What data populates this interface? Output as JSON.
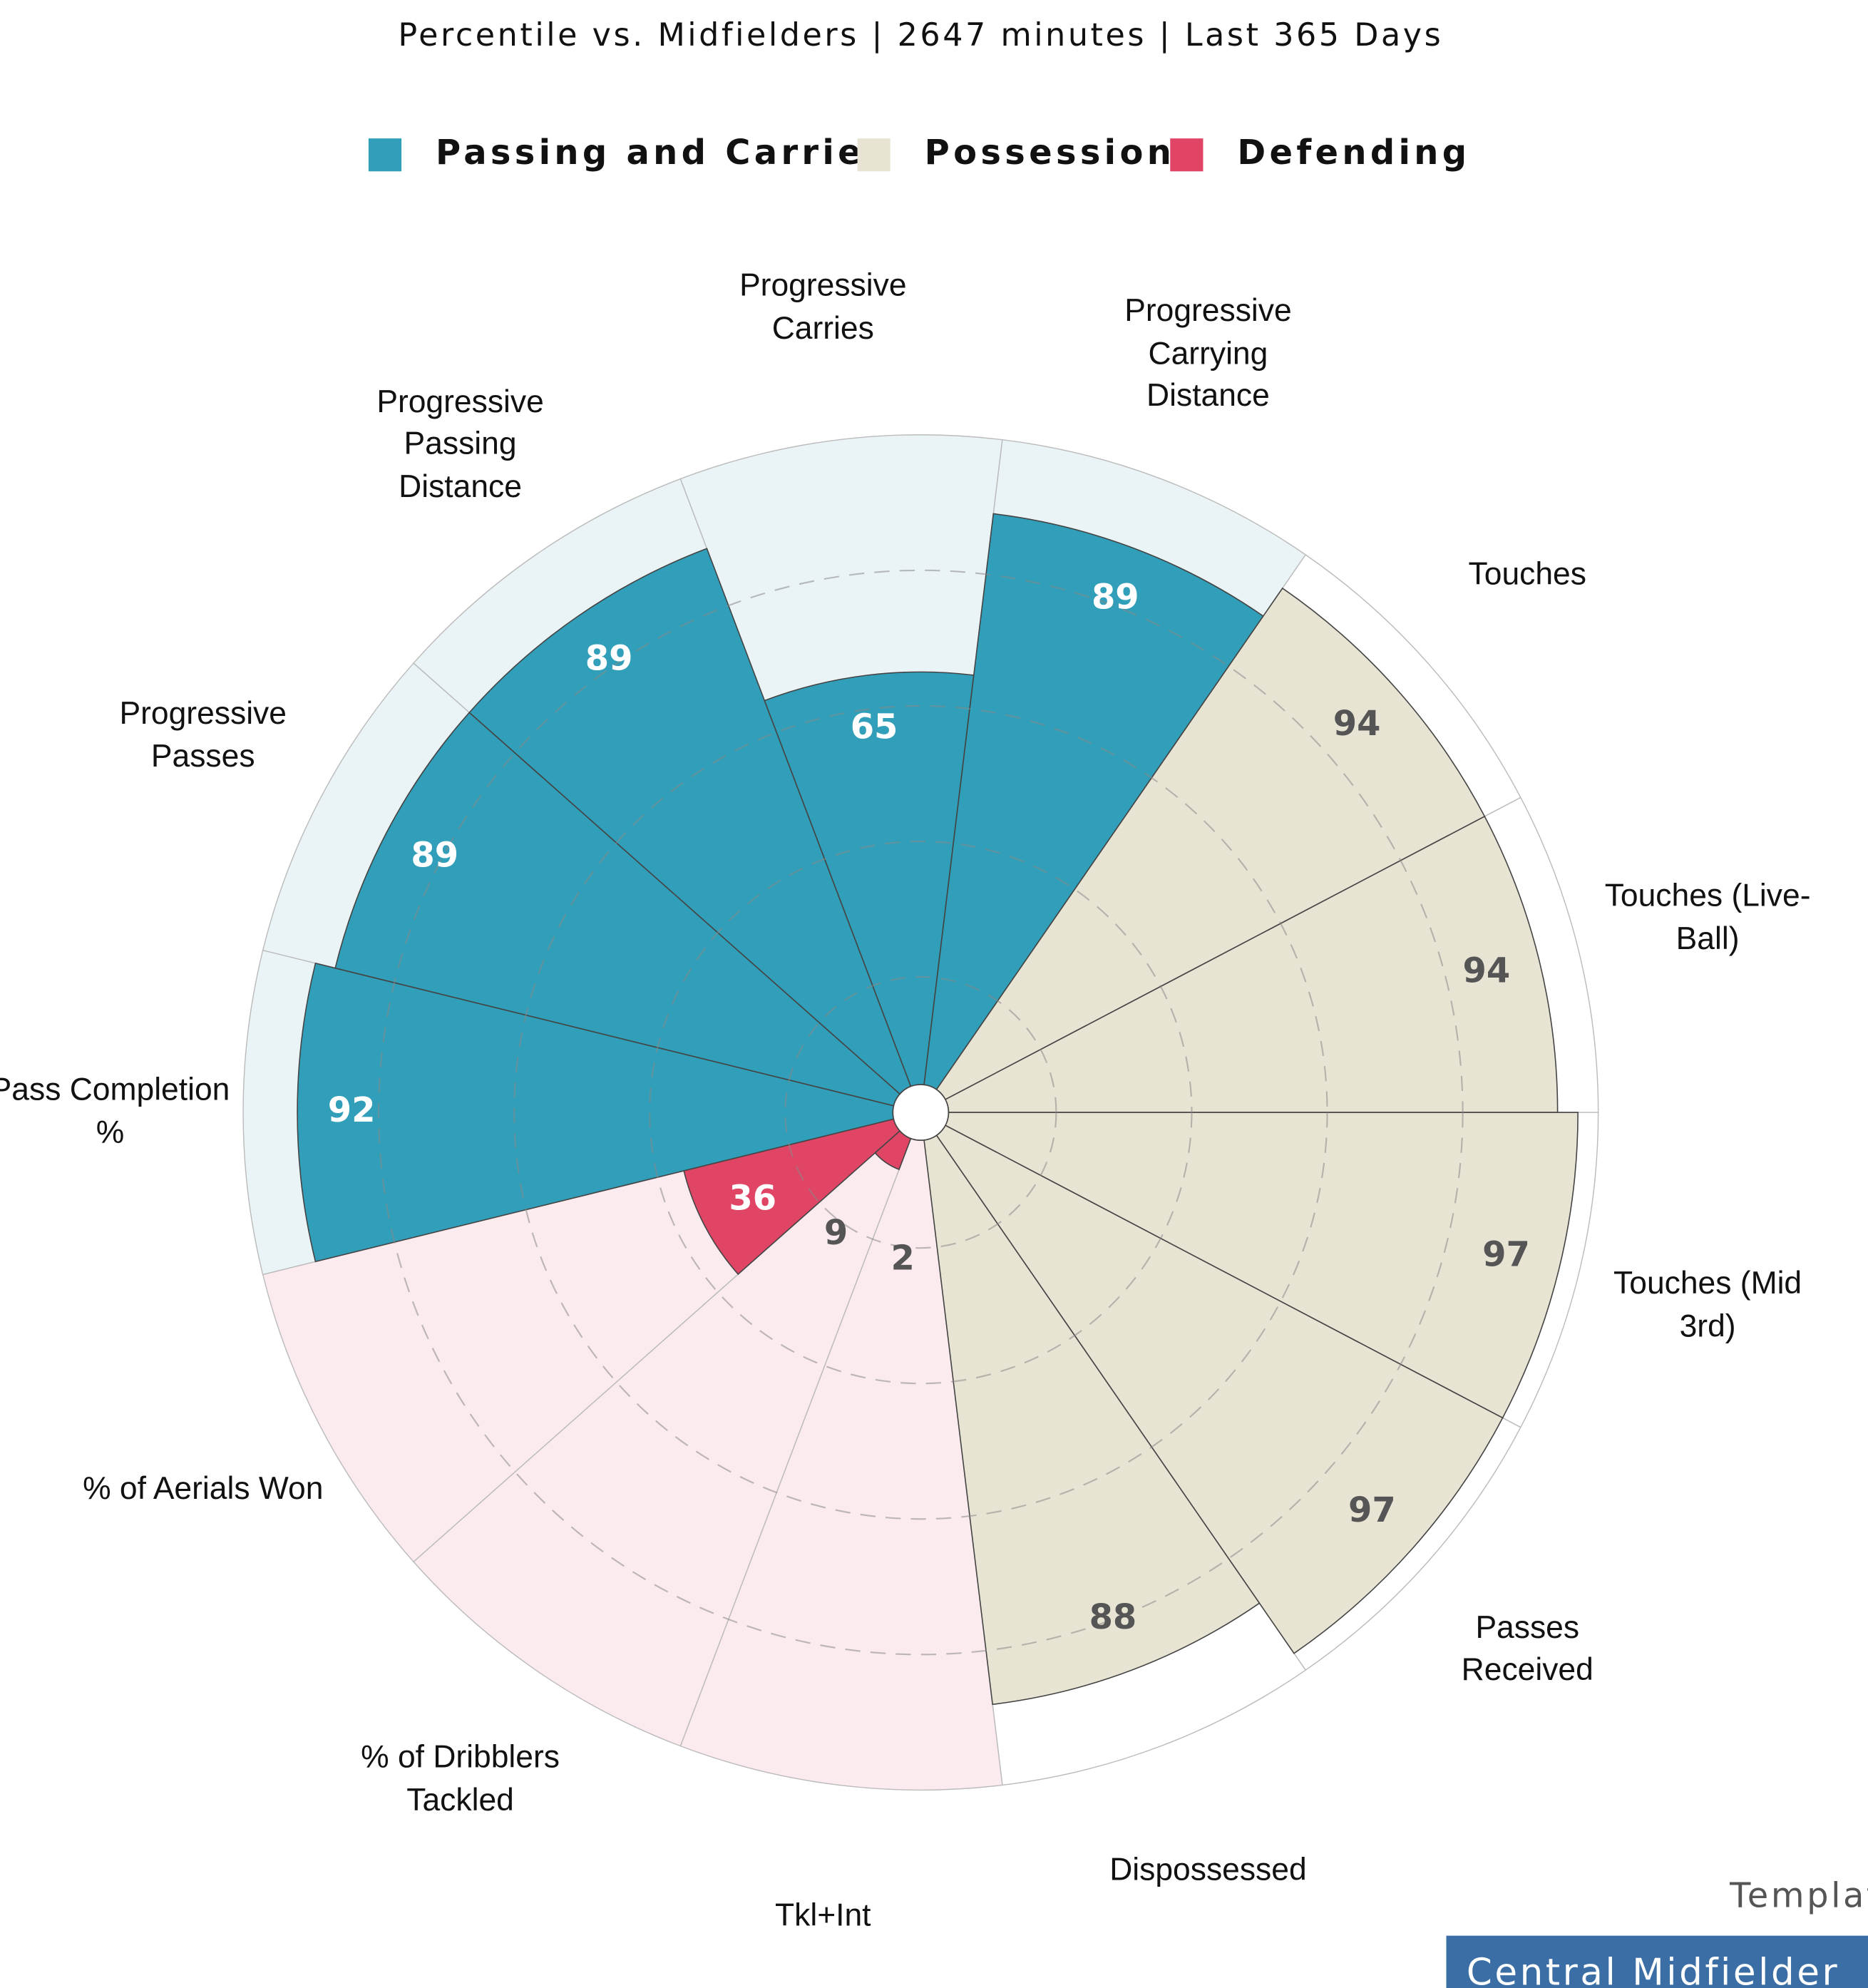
{
  "chart_data": {
    "type": "pizza",
    "title": "Percentile vs. Midfielders | 2647 minutes | Last 365 Days",
    "categories": [
      "Pass Completion %",
      "Progressive Passes",
      "Progressive Passing Distance",
      "Progressive Carries",
      "Progressive Carrying Distance",
      "Touches",
      "Touches (Live-Ball)",
      "Touches (Mid 3rd)",
      "Passes Received",
      "Dispossessed",
      "Tkl+Int",
      "% of Dribblers Tackled",
      "% of Aerials Won"
    ],
    "series": [
      {
        "name": "Passing and Carries",
        "color": "#319fb9",
        "background_color": "#eaf4f6",
        "label_color": "#ffffff",
        "values": [
          92,
          89,
          89,
          65,
          89,
          null,
          null,
          null,
          null,
          null,
          null,
          null,
          null
        ]
      },
      {
        "name": "Possession",
        "color": "#e8e4d4",
        "background_color": "#ffffff",
        "label_color": "#555555",
        "values": [
          null,
          null,
          null,
          null,
          null,
          94,
          94,
          97,
          97,
          88,
          null,
          null,
          null
        ]
      },
      {
        "name": "Defending",
        "color": "#e04566",
        "background_color": "#fbeaee",
        "label_color": "#ffffff",
        "values": [
          null,
          null,
          null,
          null,
          null,
          null,
          null,
          null,
          null,
          null,
          2,
          9,
          36
        ]
      }
    ],
    "rlim": [
      0,
      100
    ],
    "rgrid": [
      20,
      40,
      60,
      80
    ]
  },
  "footer": {
    "template_label": "Template",
    "template_name": "Central Midfielder"
  }
}
